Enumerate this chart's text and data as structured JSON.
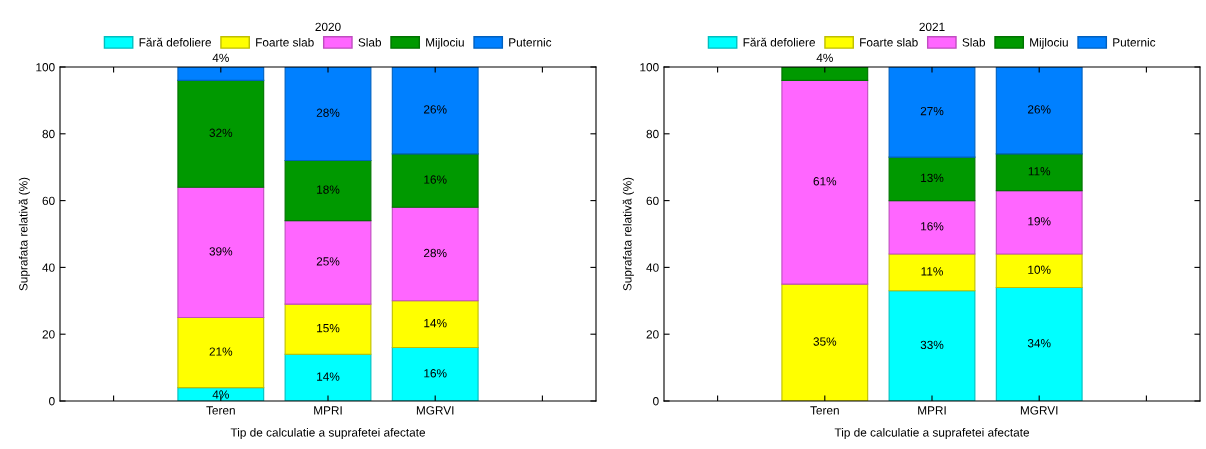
{
  "chart_data": [
    {
      "type": "bar",
      "stacked": true,
      "title": "2020",
      "xlabel": "Tip de calculatie a suprafetei afectate",
      "ylabel": "Suprafata relativă (%)",
      "categories": [
        null,
        "Teren",
        "MPRI",
        "MGRVI",
        null
      ],
      "ylim": [
        0,
        100
      ],
      "yticks": [
        0,
        20,
        40,
        60,
        80,
        100
      ],
      "grid": false,
      "legend": "top",
      "series": [
        {
          "name": "Fără defoliere",
          "color": "#00ffff",
          "values": [
            null,
            4,
            14,
            16,
            null
          ],
          "value_labels": [
            null,
            "4%",
            "14%",
            "16%",
            null
          ]
        },
        {
          "name": "Foarte slab",
          "color": "#ffff00",
          "values": [
            null,
            21,
            15,
            14,
            null
          ],
          "value_labels": [
            null,
            "21%",
            "15%",
            "14%",
            null
          ]
        },
        {
          "name": "Slab",
          "color": "#ff66ff",
          "values": [
            null,
            39,
            25,
            28,
            null
          ],
          "value_labels": [
            null,
            "39%",
            "25%",
            "28%",
            null
          ]
        },
        {
          "name": "Mijlociu",
          "color": "#009900",
          "values": [
            null,
            32,
            18,
            16,
            null
          ],
          "value_labels": [
            null,
            "32%",
            "18%",
            "16%",
            null
          ]
        },
        {
          "name": "Puternic",
          "color": "#0080ff",
          "values": [
            null,
            4,
            28,
            26,
            null
          ],
          "value_labels": [
            null,
            "4%",
            "28%",
            "26%",
            null
          ]
        }
      ]
    },
    {
      "type": "bar",
      "stacked": true,
      "title": "2021",
      "xlabel": "Tip de calculatie a suprafetei afectate",
      "ylabel": "Suprafata relativă (%)",
      "categories": [
        null,
        "Teren",
        "MPRI",
        "MGRVI",
        null
      ],
      "ylim": [
        0,
        100
      ],
      "yticks": [
        0,
        20,
        40,
        60,
        80,
        100
      ],
      "grid": false,
      "legend": "top",
      "series": [
        {
          "name": "Fără defoliere",
          "color": "#00ffff",
          "values": [
            null,
            0,
            33,
            34,
            null
          ],
          "value_labels": [
            null,
            null,
            "33%",
            "34%",
            null
          ]
        },
        {
          "name": "Foarte slab",
          "color": "#ffff00",
          "values": [
            null,
            35,
            11,
            10,
            null
          ],
          "value_labels": [
            null,
            "35%",
            "11%",
            "10%",
            null
          ]
        },
        {
          "name": "Slab",
          "color": "#ff66ff",
          "values": [
            null,
            61,
            16,
            19,
            null
          ],
          "value_labels": [
            null,
            "61%",
            "16%",
            "19%",
            null
          ]
        },
        {
          "name": "Mijlociu",
          "color": "#009900",
          "values": [
            null,
            4,
            13,
            11,
            null
          ],
          "value_labels": [
            null,
            "4%",
            "13%",
            "11%",
            null
          ]
        },
        {
          "name": "Puternic",
          "color": "#0080ff",
          "values": [
            null,
            0,
            27,
            26,
            null
          ],
          "value_labels": [
            null,
            null,
            "27%",
            "26%",
            null
          ]
        }
      ]
    }
  ]
}
